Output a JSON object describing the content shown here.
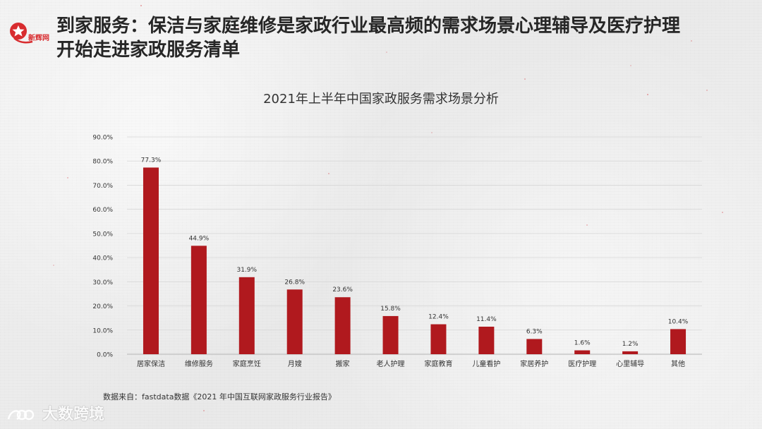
{
  "header": {
    "logo_text": "新辉网",
    "title_line1": "到家服务：保洁与家庭维修是家政行业最高频的需求场景心理辅导及医疗护理",
    "title_line2": "开始走进家政服务清单"
  },
  "source_note": "数据来自：fastdata数据《2021 年中国互联网家政服务行业报告》",
  "watermark": {
    "text": "大数跨境"
  },
  "colors": {
    "bar": "#b0191e",
    "logo_red": "#d82c2f",
    "grid": "#d7d7d7",
    "axis": "#bfbfbf",
    "text_dark": "#262626",
    "text_mid": "#333333"
  },
  "chart_data": {
    "type": "bar",
    "title": "2021年上半年中国家政服务需求场景分析",
    "categories": [
      "居家保洁",
      "维修服务",
      "家庭烹饪",
      "月嫂",
      "搬家",
      "老人护理",
      "家庭教育",
      "儿童看护",
      "家居养护",
      "医疗护理",
      "心里辅导",
      "其他"
    ],
    "values": [
      77.3,
      44.9,
      31.9,
      26.8,
      23.6,
      15.8,
      12.4,
      11.4,
      6.3,
      1.6,
      1.2,
      10.4
    ],
    "value_labels": [
      "77.3%",
      "44.9%",
      "31.9%",
      "26.8%",
      "23.6%",
      "15.8%",
      "12.4%",
      "11.4%",
      "6.3%",
      "1.6%",
      "1.2%",
      "10.4%"
    ],
    "ylim": [
      0,
      90
    ],
    "yticks": [
      0,
      10,
      20,
      30,
      40,
      50,
      60,
      70,
      80,
      90
    ],
    "ytick_labels": [
      "0.0%",
      "10.0%",
      "20.0%",
      "30.0%",
      "40.0%",
      "50.0%",
      "60.0%",
      "70.0%",
      "80.0%",
      "90.0%"
    ],
    "xlabel": "",
    "ylabel": "",
    "grid": true
  }
}
